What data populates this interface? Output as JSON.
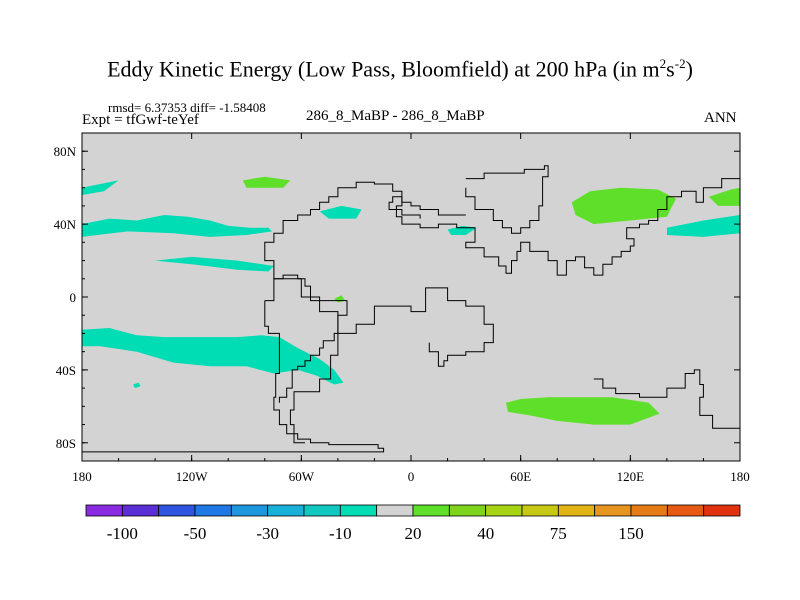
{
  "chart_data": {
    "type": "heatmap",
    "title_main": "Eddy Kinetic Energy (Low Pass, Bloomfield) at 200 hPa (in m",
    "title_sup1": "2",
    "title_mid": "s",
    "title_sup2": "-2",
    "title_close": ")",
    "stats": "rmsd= 6.37353 diff= -1.58408",
    "expt": "Expt = tfGwf-teYef",
    "center_label": "286_8_MaBP - 286_8_MaBP",
    "season": "ANN",
    "x_range": [
      -180,
      180
    ],
    "y_range": [
      -90,
      90
    ],
    "x_ticks": [
      {
        "value": -180,
        "label": "180"
      },
      {
        "value": -120,
        "label": "120W"
      },
      {
        "value": -60,
        "label": "60W"
      },
      {
        "value": 0,
        "label": "0"
      },
      {
        "value": 60,
        "label": "60E"
      },
      {
        "value": 120,
        "label": "120E"
      },
      {
        "value": 180,
        "label": "180"
      }
    ],
    "y_ticks": [
      {
        "value": 80,
        "label": "80N"
      },
      {
        "value": 40,
        "label": "40N"
      },
      {
        "value": 0,
        "label": "0"
      },
      {
        "value": -40,
        "label": "40S"
      },
      {
        "value": -80,
        "label": "80S"
      }
    ],
    "background_color": "#d3d3d3",
    "regions": [
      {
        "name": "nw-atlantic-north",
        "color": "#00dcb4",
        "points": [
          [
            -180,
            60
          ],
          [
            -170,
            62
          ],
          [
            -160,
            64
          ],
          [
            -168,
            58
          ],
          [
            -180,
            56
          ]
        ]
      },
      {
        "name": "greenland-cell",
        "color": "#5ee02a",
        "points": [
          [
            -92,
            64
          ],
          [
            -80,
            66
          ],
          [
            -66,
            64
          ],
          [
            -70,
            60
          ],
          [
            -90,
            60
          ]
        ]
      },
      {
        "name": "north-atlantic-band",
        "color": "#00dcb4",
        "points": [
          [
            -180,
            40
          ],
          [
            -165,
            43
          ],
          [
            -150,
            42
          ],
          [
            -135,
            45
          ],
          [
            -122,
            44
          ],
          [
            -110,
            42
          ],
          [
            -100,
            39
          ],
          [
            -88,
            38
          ],
          [
            -78,
            38
          ],
          [
            -76,
            36
          ],
          [
            -90,
            34
          ],
          [
            -110,
            33
          ],
          [
            -130,
            35
          ],
          [
            -155,
            36
          ],
          [
            -180,
            33
          ]
        ]
      },
      {
        "name": "mid-atlantic-cell",
        "color": "#00dcb4",
        "points": [
          [
            -50,
            47
          ],
          [
            -38,
            50
          ],
          [
            -27,
            48
          ],
          [
            -30,
            43
          ],
          [
            -45,
            43
          ]
        ]
      },
      {
        "name": "med-cell",
        "color": "#00dcb4",
        "points": [
          [
            20,
            37
          ],
          [
            28,
            39
          ],
          [
            36,
            38
          ],
          [
            30,
            34
          ],
          [
            22,
            34
          ]
        ]
      },
      {
        "name": "n-pacific-band",
        "color": "#00dcb4",
        "points": [
          [
            -140,
            20
          ],
          [
            -120,
            18
          ],
          [
            -95,
            15
          ],
          [
            -78,
            14
          ],
          [
            -75,
            17
          ],
          [
            -95,
            20
          ],
          [
            -120,
            22
          ]
        ]
      },
      {
        "name": "asia-jet",
        "color": "#5ee02a",
        "points": [
          [
            88,
            52
          ],
          [
            98,
            58
          ],
          [
            115,
            60
          ],
          [
            135,
            59
          ],
          [
            145,
            54
          ],
          [
            140,
            44
          ],
          [
            120,
            42
          ],
          [
            100,
            40
          ],
          [
            90,
            45
          ]
        ]
      },
      {
        "name": "pacific-east-north",
        "color": "#5ee02a",
        "points": [
          [
            163,
            55
          ],
          [
            175,
            59
          ],
          [
            180,
            60
          ],
          [
            180,
            50
          ],
          [
            168,
            50
          ]
        ]
      },
      {
        "name": "pacific-east-mid",
        "color": "#00dcb4",
        "points": [
          [
            140,
            38
          ],
          [
            160,
            42
          ],
          [
            180,
            45
          ],
          [
            180,
            35
          ],
          [
            160,
            33
          ],
          [
            140,
            34
          ]
        ]
      },
      {
        "name": "south-pacific-band",
        "color": "#00dcb4",
        "points": [
          [
            -180,
            -18
          ],
          [
            -165,
            -17
          ],
          [
            -150,
            -21
          ],
          [
            -135,
            -22
          ],
          [
            -115,
            -22
          ],
          [
            -95,
            -22
          ],
          [
            -82,
            -21
          ],
          [
            -72,
            -22
          ],
          [
            -62,
            -28
          ],
          [
            -50,
            -34
          ],
          [
            -42,
            -40
          ],
          [
            -37,
            -47
          ],
          [
            -42,
            -48
          ],
          [
            -52,
            -43
          ],
          [
            -62,
            -40
          ],
          [
            -75,
            -42
          ],
          [
            -90,
            -38
          ],
          [
            -110,
            -38
          ],
          [
            -130,
            -36
          ],
          [
            -150,
            -30
          ],
          [
            -170,
            -27
          ],
          [
            -180,
            -27
          ]
        ]
      },
      {
        "name": "south-indian-band",
        "color": "#5ee02a",
        "points": [
          [
            52,
            -58
          ],
          [
            60,
            -56
          ],
          [
            75,
            -55
          ],
          [
            90,
            -55
          ],
          [
            110,
            -55
          ],
          [
            130,
            -58
          ],
          [
            136,
            -64
          ],
          [
            120,
            -70
          ],
          [
            100,
            -70
          ],
          [
            80,
            -68
          ],
          [
            65,
            -65
          ],
          [
            53,
            -63
          ]
        ]
      },
      {
        "name": "equator-cell",
        "color": "#5ee02a",
        "points": [
          [
            -42,
            -1
          ],
          [
            -38,
            1
          ],
          [
            -36,
            -2
          ],
          [
            -40,
            -3
          ]
        ]
      },
      {
        "name": "south-speck",
        "color": "#00dcb4",
        "points": [
          [
            -152,
            -48
          ],
          [
            -149,
            -47
          ],
          [
            -148,
            -49
          ],
          [
            -151,
            -50
          ]
        ]
      }
    ],
    "outline": [
      {
        "name": "south-america-east",
        "points": [
          [
            -180,
            -85
          ],
          [
            -15,
            -85
          ],
          [
            -15,
            -83
          ],
          [
            -18,
            -81
          ],
          [
            -45,
            -80
          ],
          [
            -55,
            -78
          ],
          [
            -62,
            -75
          ],
          [
            -68,
            -70
          ],
          [
            -72,
            -62
          ],
          [
            -75,
            -55
          ],
          [
            -74,
            -42
          ],
          [
            -72,
            -20
          ],
          [
            -78,
            -16
          ],
          [
            -80,
            -2
          ]
        ]
      },
      {
        "name": "south-america-inner",
        "points": [
          [
            -58,
            -80
          ],
          [
            -64,
            -70
          ],
          [
            -66,
            -62
          ],
          [
            -64,
            -52
          ],
          [
            -50,
            -45
          ],
          [
            -44,
            -32
          ],
          [
            -40,
            -20
          ],
          [
            -40,
            -8
          ],
          [
            -50,
            -2
          ],
          [
            -55,
            0
          ]
        ]
      },
      {
        "name": "americas-atlantic",
        "points": [
          [
            -80,
            -2
          ],
          [
            -75,
            10
          ],
          [
            -70,
            12
          ],
          [
            -62,
            10
          ],
          [
            -58,
            6
          ],
          [
            -55,
            0
          ],
          [
            -50,
            -2
          ],
          [
            -35,
            -5
          ],
          [
            -35,
            -10
          ],
          [
            -40,
            -20
          ],
          [
            -42,
            -24
          ],
          [
            -48,
            -28
          ],
          [
            -50,
            -32
          ],
          [
            -55,
            -35
          ],
          [
            -58,
            -38
          ],
          [
            -62,
            -40
          ],
          [
            -65,
            -43
          ],
          [
            -65,
            -50
          ],
          [
            -68,
            -55
          ],
          [
            -72,
            -58
          ]
        ]
      },
      {
        "name": "north-atlantic-coast",
        "points": [
          [
            -40,
            -20
          ],
          [
            -30,
            -15
          ],
          [
            -20,
            -5
          ],
          [
            -5,
            -5
          ],
          [
            0,
            -8
          ],
          [
            8,
            5
          ],
          [
            15,
            5
          ],
          [
            20,
            -2
          ],
          [
            30,
            -5
          ],
          [
            40,
            -15
          ],
          [
            45,
            -25
          ],
          [
            40,
            -30
          ],
          [
            30,
            -32
          ],
          [
            20,
            -35
          ],
          [
            18,
            -38
          ],
          [
            15,
            -30
          ],
          [
            10,
            -25
          ]
        ]
      },
      {
        "name": "north-coast",
        "points": [
          [
            -55,
            0
          ],
          [
            -60,
            10
          ],
          [
            -75,
            20
          ],
          [
            -80,
            25
          ],
          [
            -80,
            30
          ],
          [
            -75,
            35
          ],
          [
            -70,
            42
          ],
          [
            -62,
            45
          ],
          [
            -55,
            48
          ],
          [
            -50,
            52
          ],
          [
            -45,
            55
          ],
          [
            -40,
            60
          ],
          [
            -30,
            63
          ],
          [
            -20,
            62
          ],
          [
            -10,
            58
          ],
          [
            -5,
            50
          ],
          [
            -8,
            44
          ],
          [
            -5,
            40
          ],
          [
            5,
            38
          ],
          [
            15,
            40
          ],
          [
            25,
            38
          ],
          [
            35,
            35
          ],
          [
            35,
            30
          ],
          [
            30,
            27
          ],
          [
            40,
            22
          ],
          [
            48,
            17
          ],
          [
            52,
            13
          ],
          [
            55,
            20
          ],
          [
            58,
            25
          ],
          [
            60,
            30
          ],
          [
            65,
            25
          ],
          [
            75,
            20
          ],
          [
            80,
            12
          ],
          [
            85,
            20
          ],
          [
            90,
            22
          ],
          [
            95,
            16
          ],
          [
            100,
            12
          ],
          [
            105,
            18
          ],
          [
            110,
            22
          ],
          [
            115,
            25
          ],
          [
            120,
            28
          ],
          [
            122,
            32
          ],
          [
            118,
            38
          ],
          [
            125,
            40
          ],
          [
            130,
            42
          ],
          [
            135,
            48
          ],
          [
            140,
            55
          ],
          [
            148,
            58
          ],
          [
            156,
            52
          ],
          [
            160,
            60
          ],
          [
            170,
            65
          ],
          [
            180,
            66
          ]
        ]
      },
      {
        "name": "greenland-loop",
        "points": [
          [
            30,
            65
          ],
          [
            40,
            68
          ],
          [
            55,
            68
          ],
          [
            62,
            70
          ],
          [
            73,
            72
          ],
          [
            75,
            66
          ],
          [
            72,
            58
          ],
          [
            72,
            50
          ],
          [
            70,
            42
          ],
          [
            65,
            38
          ],
          [
            60,
            35
          ],
          [
            55,
            38
          ],
          [
            50,
            42
          ],
          [
            45,
            48
          ],
          [
            35,
            55
          ],
          [
            30,
            60
          ]
        ]
      },
      {
        "name": "mid-continent",
        "points": [
          [
            30,
            45
          ],
          [
            20,
            45
          ],
          [
            15,
            48
          ],
          [
            5,
            50
          ],
          [
            0,
            52
          ],
          [
            -5,
            55
          ],
          [
            -10,
            52
          ],
          [
            -12,
            48
          ],
          [
            -5,
            45
          ],
          [
            0,
            45
          ],
          [
            5,
            43
          ]
        ]
      },
      {
        "name": "south-africa-loop",
        "points": [
          [
            100,
            -45
          ],
          [
            105,
            -50
          ],
          [
            112,
            -53
          ],
          [
            125,
            -55
          ],
          [
            140,
            -50
          ],
          [
            150,
            -42
          ],
          [
            155,
            -40
          ],
          [
            158,
            -48
          ],
          [
            160,
            -55
          ],
          [
            158,
            -65
          ],
          [
            165,
            -72
          ],
          [
            180,
            -80
          ]
        ]
      }
    ],
    "colorbar": {
      "colors": [
        "#8a2be2",
        "#5a2fd6",
        "#2f55e0",
        "#1e78e6",
        "#1c97de",
        "#17b0d8",
        "#10c8c0",
        "#00dcb4",
        "#d3d3d3",
        "#5ee02a",
        "#7ed31c",
        "#a6d414",
        "#c6c814",
        "#e0b414",
        "#e6951e",
        "#e67a14",
        "#e65a14",
        "#e0320f"
      ],
      "labels": [
        {
          "boundary": 1,
          "text": "-100"
        },
        {
          "boundary": 3,
          "text": "-50"
        },
        {
          "boundary": 5,
          "text": "-30"
        },
        {
          "boundary": 7,
          "text": "-10"
        },
        {
          "boundary": 9,
          "text": "20"
        },
        {
          "boundary": 11,
          "text": "40"
        },
        {
          "boundary": 13,
          "text": "75"
        },
        {
          "boundary": 15,
          "text": "150"
        }
      ]
    }
  }
}
